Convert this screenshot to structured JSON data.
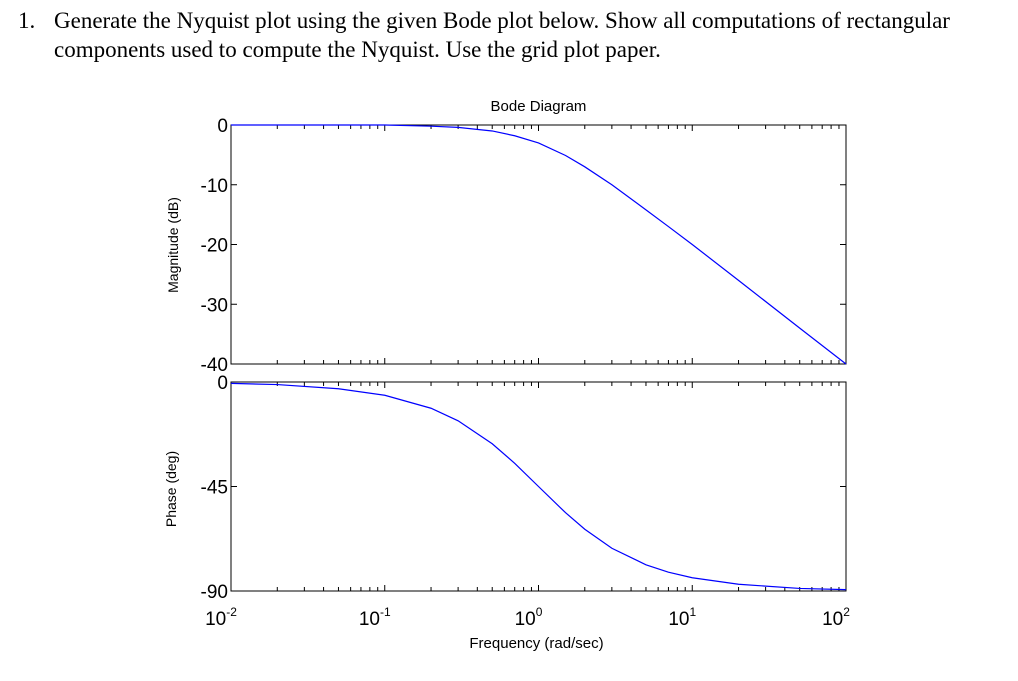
{
  "question": {
    "number": "1.",
    "text": "Generate the Nyquist plot using the given Bode plot below. Show all computations of rectangular components used to compute the Nyquist. Use the grid plot paper."
  },
  "chart_data": [
    {
      "type": "line",
      "title": "Bode Diagram",
      "xlabel": "",
      "ylabel": "Magnitude (dB)",
      "xscale": "log",
      "xlim": [
        0.01,
        100
      ],
      "ylim": [
        -40,
        0
      ],
      "yticks": [
        "0",
        "-10",
        "-20",
        "-30",
        "-40"
      ],
      "color": "#0000ff",
      "grid": false,
      "series": [
        {
          "x": [
            0.01,
            0.02,
            0.05,
            0.1,
            0.2,
            0.3,
            0.5,
            0.7,
            1,
            1.5,
            2,
            3,
            5,
            7,
            10,
            20,
            50,
            100
          ],
          "y": [
            0.0,
            0.0,
            0.0,
            0.0,
            -0.2,
            -0.4,
            -1.0,
            -1.8,
            -3.0,
            -5.1,
            -7.0,
            -10.0,
            -14.2,
            -17.0,
            -20.0,
            -26.0,
            -34.0,
            -40.0
          ]
        }
      ]
    },
    {
      "type": "line",
      "xlabel": "Frequency (rad/sec)",
      "ylabel": "Phase (deg)",
      "xscale": "log",
      "xlim": [
        0.01,
        100
      ],
      "ylim": [
        -90,
        0
      ],
      "xticks": [
        {
          "base": "10",
          "exp": "-2"
        },
        {
          "base": "10",
          "exp": "-1"
        },
        {
          "base": "10",
          "exp": "0"
        },
        {
          "base": "10",
          "exp": "1"
        },
        {
          "base": "10",
          "exp": "2"
        }
      ],
      "yticks": [
        "0",
        "-45",
        "-90"
      ],
      "color": "#0000ff",
      "grid": false,
      "series": [
        {
          "x": [
            0.01,
            0.02,
            0.05,
            0.1,
            0.2,
            0.3,
            0.5,
            0.7,
            1,
            1.5,
            2,
            3,
            5,
            7,
            10,
            20,
            50,
            100
          ],
          "y": [
            -0.6,
            -1.1,
            -2.9,
            -5.7,
            -11.3,
            -16.7,
            -26.6,
            -35.0,
            -45.0,
            -56.3,
            -63.4,
            -71.6,
            -78.7,
            -81.9,
            -84.3,
            -87.1,
            -88.9,
            -89.4
          ]
        }
      ]
    }
  ]
}
